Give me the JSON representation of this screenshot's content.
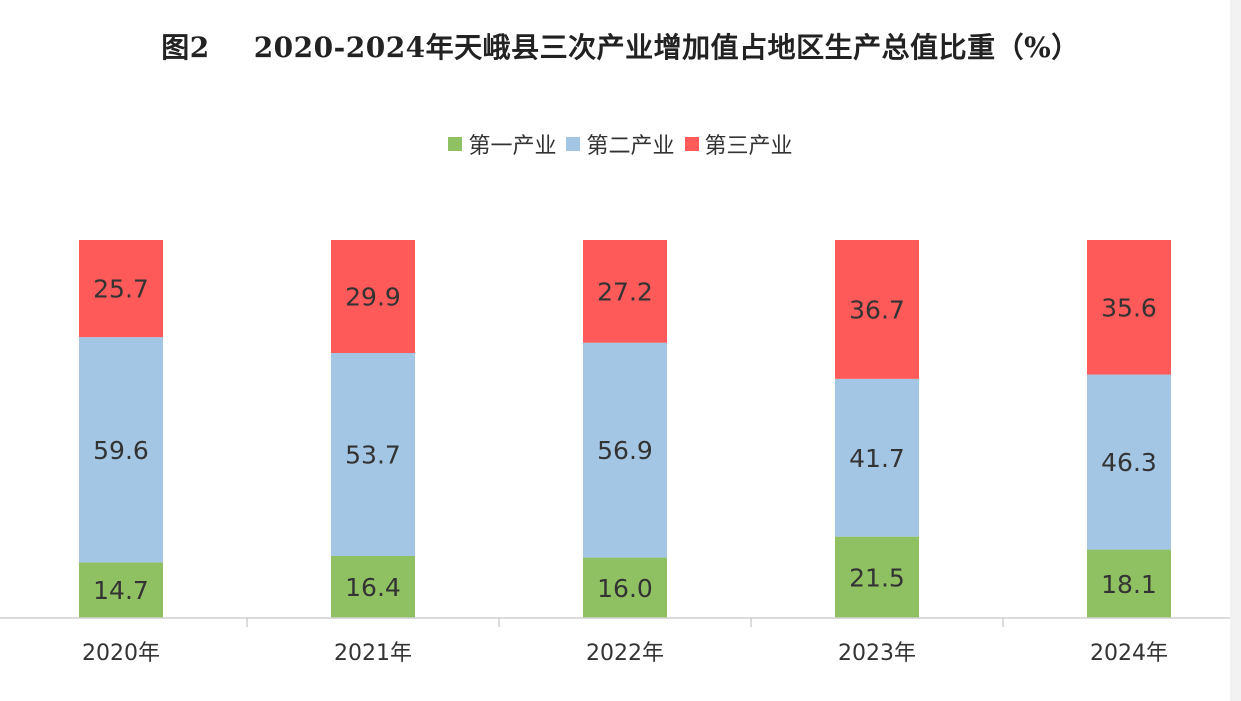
{
  "chart_data": {
    "type": "bar",
    "stacked": true,
    "title": "图2　2020-2024年天峨县三次产业增加值占地区生产总值比重（%）",
    "title_fig": "图2",
    "title_text": "2020-2024年天峨县三次产业增加值占地区生产总值比重（%）",
    "categories": [
      "2020年",
      "2021年",
      "2022年",
      "2023年",
      "2024年"
    ],
    "series": [
      {
        "name": "第一产业",
        "color": "#8fc163",
        "values": [
          14.7,
          16.4,
          16.0,
          21.5,
          18.1
        ]
      },
      {
        "name": "第二产业",
        "color": "#a3c6e5",
        "values": [
          59.6,
          53.7,
          56.9,
          41.7,
          46.3
        ]
      },
      {
        "name": "第三产业",
        "color": "#ff5a5a",
        "values": [
          25.7,
          29.9,
          27.2,
          36.7,
          35.6
        ]
      }
    ],
    "value_labels": [
      [
        "14.7",
        "16.4",
        "16.0",
        "21.5",
        "18.1"
      ],
      [
        "59.6",
        "53.7",
        "56.9",
        "41.7",
        "46.3"
      ],
      [
        "25.7",
        "29.9",
        "27.2",
        "36.7",
        "35.6"
      ]
    ],
    "ylim": [
      0,
      100
    ],
    "legend_position": "top",
    "grid": false
  }
}
